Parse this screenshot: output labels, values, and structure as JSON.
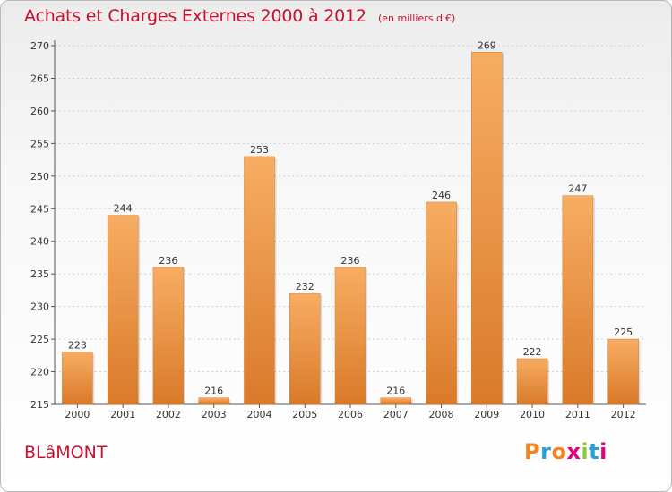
{
  "header": {
    "title": "Achats et Charges Externes 2000 à 2012",
    "unit": "(en milliers d'€)"
  },
  "footer": {
    "commune": "BLâMONT",
    "brand": "Proxiti",
    "brand_colors": [
      "#f5821f",
      "#2a9fd8",
      "#f5821f",
      "#e6007e",
      "#8dc63f",
      "#2a9fd8",
      "#e6007e"
    ]
  },
  "colors": {
    "bar": "#f0a050",
    "bar_light": "#f7ad62",
    "bar_dark": "#d97a2a",
    "title": "#c8102e",
    "grid": "#cfcfcf"
  },
  "chart_data": {
    "type": "bar",
    "categories": [
      "2000",
      "2001",
      "2002",
      "2003",
      "2004",
      "2005",
      "2006",
      "2007",
      "2008",
      "2009",
      "2010",
      "2011",
      "2012"
    ],
    "values": [
      223,
      244,
      236,
      216,
      253,
      232,
      236,
      216,
      246,
      269,
      222,
      247,
      225
    ],
    "ylim": [
      215,
      270
    ],
    "yticks": [
      215,
      220,
      225,
      230,
      235,
      240,
      245,
      250,
      255,
      260,
      265,
      270
    ],
    "grid": true,
    "title": "Achats et Charges Externes 2000 à 2012",
    "xlabel": "",
    "ylabel": ""
  }
}
